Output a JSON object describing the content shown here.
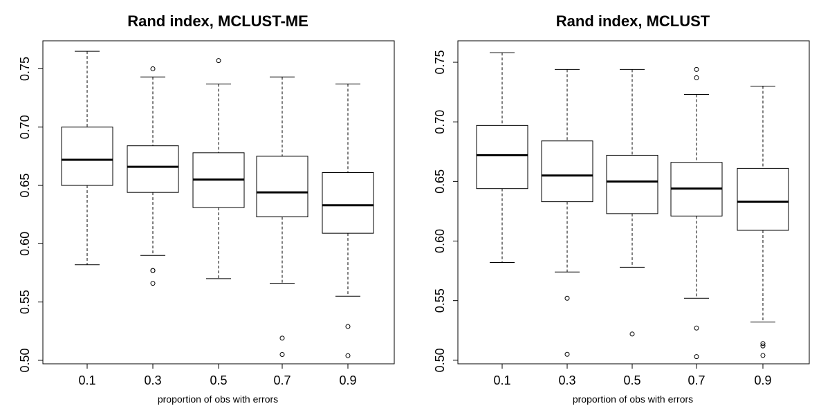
{
  "chart_data": [
    {
      "type": "boxplot",
      "title": "Rand index, MCLUST-ME",
      "xlabel": "proportion of obs with errors",
      "ylabel": "",
      "categories": [
        "0.1",
        "0.3",
        "0.5",
        "0.7",
        "0.9"
      ],
      "y_ticks": [
        "0.50",
        "0.55",
        "0.60",
        "0.65",
        "0.70",
        "0.75"
      ],
      "ylim": [
        0.497,
        0.774
      ],
      "boxes": [
        {
          "whisker_low": 0.582,
          "q1": 0.65,
          "median": 0.672,
          "q3": 0.7,
          "whisker_high": 0.765,
          "outliers": []
        },
        {
          "whisker_low": 0.59,
          "q1": 0.644,
          "median": 0.666,
          "q3": 0.684,
          "whisker_high": 0.743,
          "outliers": [
            0.75,
            0.577,
            0.577,
            0.566
          ]
        },
        {
          "whisker_low": 0.57,
          "q1": 0.631,
          "median": 0.655,
          "q3": 0.678,
          "whisker_high": 0.737,
          "outliers": [
            0.757
          ]
        },
        {
          "whisker_low": 0.566,
          "q1": 0.623,
          "median": 0.644,
          "q3": 0.675,
          "whisker_high": 0.743,
          "outliers": [
            0.519,
            0.505
          ]
        },
        {
          "whisker_low": 0.555,
          "q1": 0.609,
          "median": 0.633,
          "q3": 0.661,
          "whisker_high": 0.737,
          "outliers": [
            0.529,
            0.504
          ]
        }
      ]
    },
    {
      "type": "boxplot",
      "title": "Rand index, MCLUST",
      "xlabel": "proportion of obs with errors",
      "ylabel": "",
      "categories": [
        "0.1",
        "0.3",
        "0.5",
        "0.7",
        "0.9"
      ],
      "y_ticks": [
        "0.50",
        "0.55",
        "0.60",
        "0.65",
        "0.70",
        "0.75"
      ],
      "ylim": [
        0.497,
        0.768
      ],
      "boxes": [
        {
          "whisker_low": 0.582,
          "q1": 0.644,
          "median": 0.672,
          "q3": 0.697,
          "whisker_high": 0.758,
          "outliers": []
        },
        {
          "whisker_low": 0.574,
          "q1": 0.633,
          "median": 0.655,
          "q3": 0.684,
          "whisker_high": 0.744,
          "outliers": [
            0.552,
            0.505
          ]
        },
        {
          "whisker_low": 0.578,
          "q1": 0.623,
          "median": 0.65,
          "q3": 0.672,
          "whisker_high": 0.744,
          "outliers": [
            0.522
          ]
        },
        {
          "whisker_low": 0.552,
          "q1": 0.621,
          "median": 0.644,
          "q3": 0.666,
          "whisker_high": 0.723,
          "outliers": [
            0.744,
            0.737,
            0.527,
            0.503
          ]
        },
        {
          "whisker_low": 0.532,
          "q1": 0.609,
          "median": 0.633,
          "q3": 0.661,
          "whisker_high": 0.73,
          "outliers": [
            0.514,
            0.512,
            0.504
          ]
        }
      ]
    }
  ]
}
